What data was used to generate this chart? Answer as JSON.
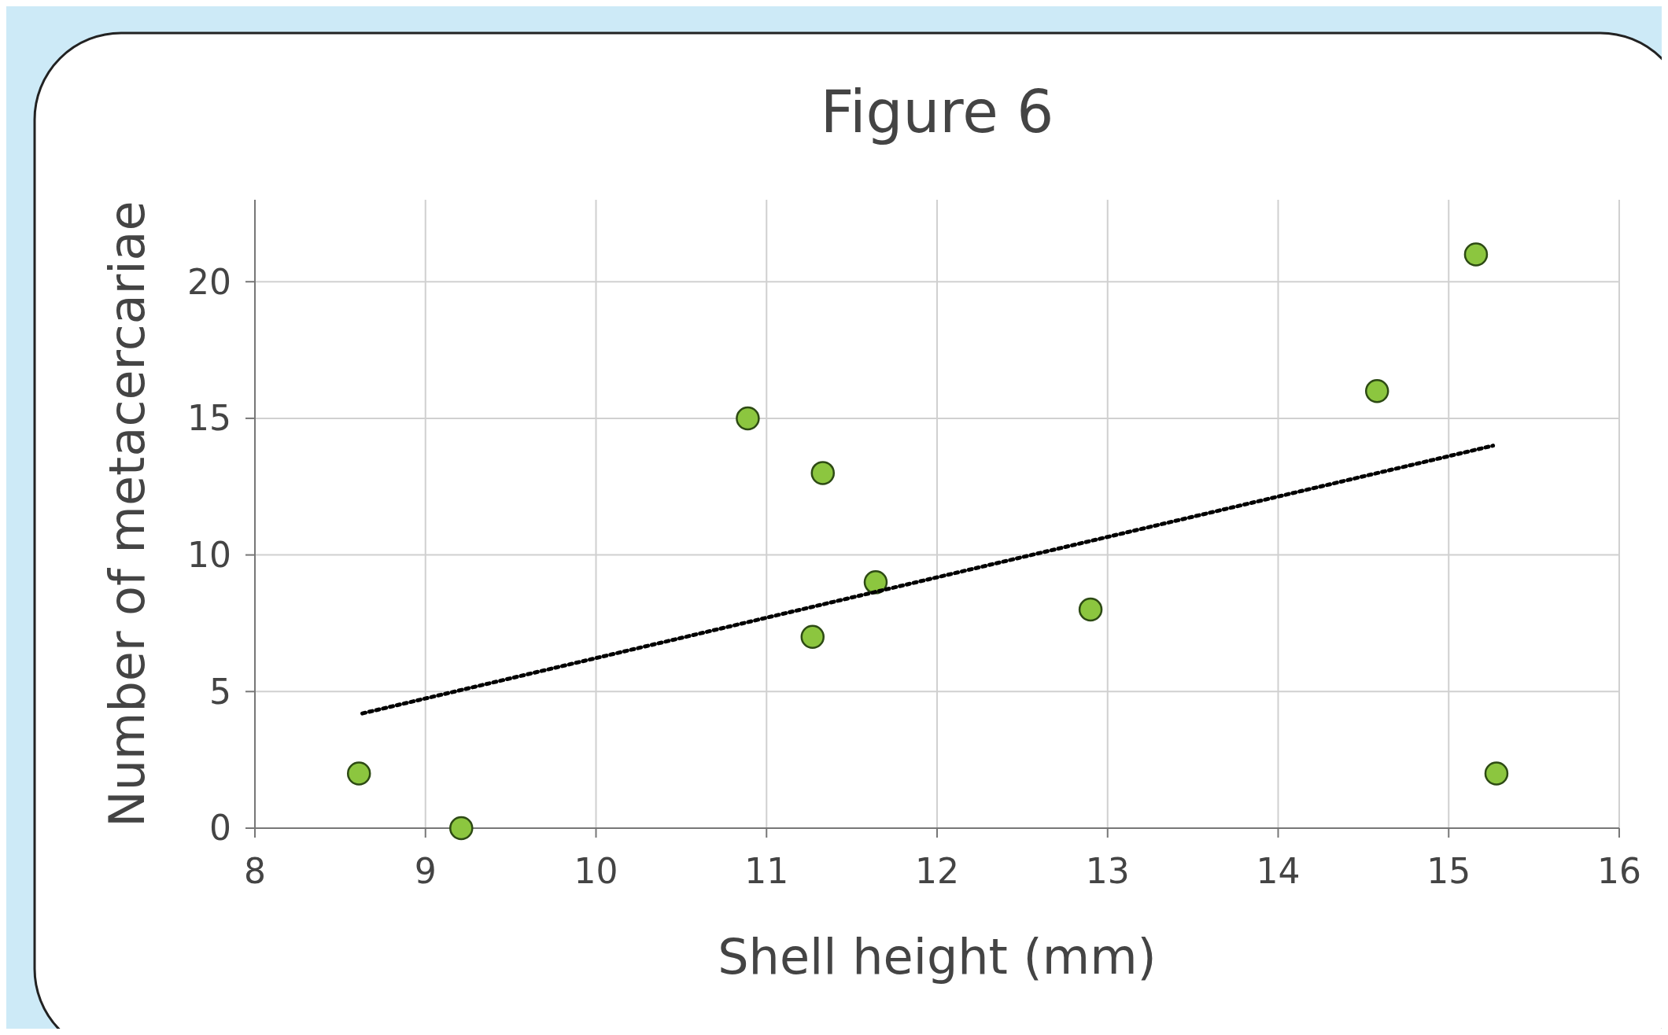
{
  "chart_data": {
    "type": "scatter",
    "title": "Figure 6",
    "xlabel": "Shell height (mm)",
    "ylabel": "Number of metacercariae",
    "xlim": [
      8,
      16
    ],
    "xticks": [
      8,
      9,
      10,
      11,
      12,
      13,
      14,
      15,
      16
    ],
    "ylim": [
      0,
      23
    ],
    "yticks": [
      0,
      5,
      10,
      15,
      20
    ],
    "grid": true,
    "marker": "circle",
    "series": [
      {
        "color": "#8cc63f",
        "x": [
          8.61,
          9.21,
          10.89,
          11.33,
          11.27,
          11.64,
          12.9,
          14.58,
          15.16,
          15.28
        ],
        "values": [
          2,
          0,
          15,
          13,
          7,
          9,
          8,
          16,
          21,
          2
        ]
      },
      {
        "type": "line",
        "color": "#000000",
        "line_style": "dotted",
        "marker": "none",
        "x": [
          8.63,
          15.26
        ],
        "values": [
          4.2,
          14
        ]
      }
    ]
  }
}
